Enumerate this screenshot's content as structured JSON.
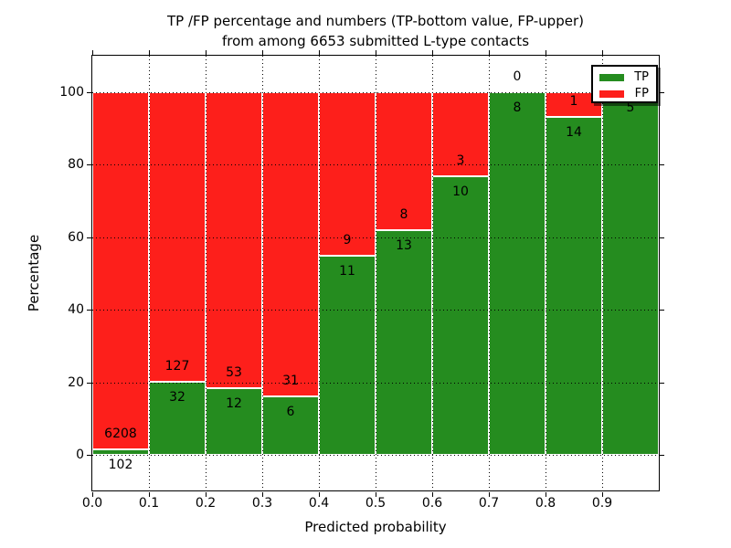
{
  "title": {
    "line1": "TP /FP percentage and numbers (TP-bottom value, FP-upper)",
    "line2": "from among 6653 submitted L-type contacts"
  },
  "x_axis": {
    "label": "Predicted probability",
    "ticks": [
      "0.0",
      "0.1",
      "0.2",
      "0.3",
      "0.4",
      "0.5",
      "0.6",
      "0.7",
      "0.8",
      "0.9"
    ]
  },
  "y_axis": {
    "label": "Percentage",
    "ticks": [
      "0",
      "20",
      "40",
      "60",
      "80",
      "100"
    ]
  },
  "legend": [
    {
      "label": "TP",
      "color": "#258c1f"
    },
    {
      "label": "FP",
      "color": "#fd1f1b"
    }
  ],
  "colors": {
    "tp_green": "#258c1f",
    "fp_red": "#fd1f1b",
    "grid": "#000000",
    "bar_edge": "#ffffff"
  },
  "chart_data": {
    "type": "bar",
    "stacked": true,
    "title": "TP /FP percentage and numbers (TP-bottom value, FP-upper) from among 6653 submitted L-type contacts",
    "total_contacts": 6653,
    "xlabel": "Predicted probability",
    "ylabel": "Percentage",
    "xlim": [
      0.0,
      1.0
    ],
    "ylim": [
      -10,
      110
    ],
    "bin_width": 0.1,
    "grid": "dotted",
    "legend_position": "upper right",
    "series_colors": {
      "TP": "#258c1f",
      "FP": "#fd1f1b"
    },
    "bins": [
      {
        "range": [
          0.0,
          0.1
        ],
        "tp": 102,
        "fp": 6208,
        "tp_pct": 1.6,
        "tp_label": "102",
        "fp_label": "6208"
      },
      {
        "range": [
          0.1,
          0.2
        ],
        "tp": 32,
        "fp": 127,
        "tp_pct": 20.1,
        "tp_label": "32",
        "fp_label": "127"
      },
      {
        "range": [
          0.2,
          0.3
        ],
        "tp": 12,
        "fp": 53,
        "tp_pct": 18.5,
        "tp_label": "12",
        "fp_label": "53"
      },
      {
        "range": [
          0.3,
          0.4
        ],
        "tp": 6,
        "fp": 31,
        "tp_pct": 16.2,
        "tp_label": "6",
        "fp_label": "31"
      },
      {
        "range": [
          0.4,
          0.5
        ],
        "tp": 11,
        "fp": 9,
        "tp_pct": 55.0,
        "tp_label": "11",
        "fp_label": "9"
      },
      {
        "range": [
          0.5,
          0.6
        ],
        "tp": 13,
        "fp": 8,
        "tp_pct": 61.9,
        "tp_label": "13",
        "fp_label": "8"
      },
      {
        "range": [
          0.6,
          0.7
        ],
        "tp": 10,
        "fp": 3,
        "tp_pct": 76.9,
        "tp_label": "10",
        "fp_label": "3"
      },
      {
        "range": [
          0.7,
          0.8
        ],
        "tp": 8,
        "fp": 0,
        "tp_pct": 100.0,
        "tp_label": "8",
        "fp_label": "0"
      },
      {
        "range": [
          0.8,
          0.9
        ],
        "tp": 14,
        "fp": 1,
        "tp_pct": 93.3,
        "tp_label": "14",
        "fp_label": "1"
      },
      {
        "range": [
          0.9,
          1.0
        ],
        "tp": 5,
        "fp": 0,
        "tp_pct": 100.0,
        "tp_label": "5",
        "fp_label": ""
      }
    ]
  }
}
